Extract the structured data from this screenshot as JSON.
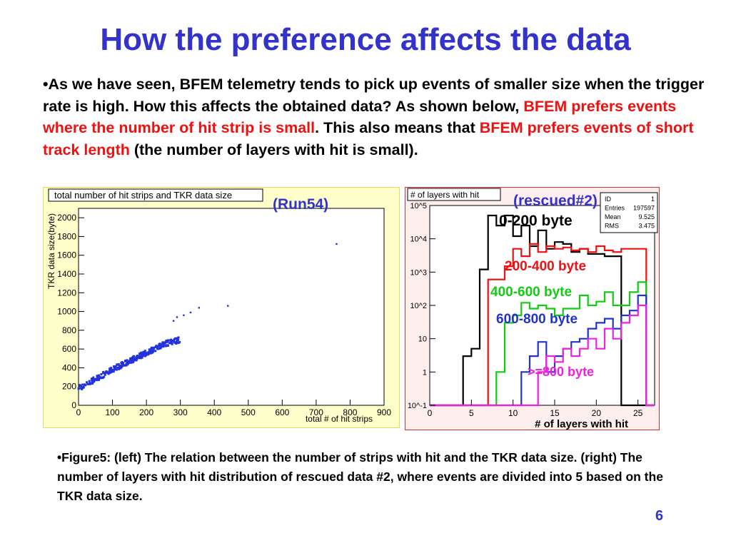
{
  "slide": {
    "title": "How the preference affects the data",
    "paragraph": {
      "t1": "•As we have seen, BFEM telemetry tends to pick up events of smaller size when the trigger rate is high. How this affects the obtained data? As shown below, ",
      "h1": "BFEM prefers events where the number of hit strip is small",
      "t2": ". This also means that ",
      "h2": "BFEM prefers events of short track length",
      "t3": " (the number of layers with hit is small)."
    },
    "caption": "•Figure5: (left) The relation between the number of strips with hit and the TKR data size. (right) The number of layers with hit distribution of rescued data #2, where events are divided into 5 based on the TKR data size.",
    "page_number": "6",
    "colors": {
      "title": "#3333cc",
      "highlight": "#ee1111",
      "scatter": "#2233dd"
    }
  },
  "chart_data": [
    {
      "type": "scatter",
      "title": "total number of hit strips and TKR data size",
      "annotation": "(Run54)",
      "xlabel": "total # of hit strips",
      "ylabel": "TKR data size(byte)",
      "xlim": [
        0,
        900
      ],
      "ylim": [
        0,
        2100
      ],
      "x_ticks": [
        "0",
        "100",
        "200",
        "300",
        "400",
        "500",
        "600",
        "700",
        "800",
        "900"
      ],
      "y_ticks": [
        "0",
        "200",
        "400",
        "600",
        "800",
        "1000",
        "1200",
        "1400",
        "1600",
        "1800",
        "2000"
      ],
      "trend": [
        [
          0,
          180
        ],
        [
          50,
          280
        ],
        [
          100,
          380
        ],
        [
          150,
          470
        ],
        [
          200,
          560
        ],
        [
          250,
          650
        ],
        [
          300,
          700
        ]
      ],
      "outliers": [
        [
          280,
          900
        ],
        [
          290,
          940
        ],
        [
          310,
          960
        ],
        [
          330,
          990
        ],
        [
          355,
          1040
        ],
        [
          440,
          1060
        ],
        [
          760,
          1720
        ]
      ]
    },
    {
      "type": "line",
      "title": "# of layers with hit",
      "annotation": "(rescued#2)",
      "xlabel": "# of layers with hit",
      "ylabel": "",
      "log_y": true,
      "xlim": [
        0,
        27
      ],
      "ylim": [
        0.1,
        100000
      ],
      "x_ticks": [
        "0",
        "5",
        "10",
        "15",
        "20",
        "25"
      ],
      "y_ticks": [
        "10^-1",
        "1",
        "10",
        "10^2",
        "10^3",
        "10^4",
        "10^5"
      ],
      "stats": [
        {
          "label": "ID",
          "value": "1"
        },
        {
          "label": "Entries",
          "value": "197597"
        },
        {
          "label": "Mean",
          "value": "9.525"
        },
        {
          "label": "RMS",
          "value": "3.475"
        }
      ],
      "series": [
        {
          "name": "0-200 byte",
          "color": "#000000",
          "values": [
            0,
            0,
            0,
            0,
            3,
            5,
            1200,
            50000,
            25000,
            50000,
            12000,
            25000,
            6000,
            18000,
            5000,
            8000,
            7000,
            4000,
            5000,
            3500,
            3500,
            3000,
            3000,
            0.1,
            0.1,
            0.1,
            0.1
          ]
        },
        {
          "name": "200-400 byte",
          "color": "#ee1111",
          "values": [
            0,
            0,
            0,
            0,
            0,
            0,
            0.1,
            600,
            600,
            1500,
            5000,
            3000,
            7000,
            4000,
            6000,
            5000,
            5500,
            4500,
            5000,
            4000,
            6000,
            4500,
            4000,
            5000,
            5000,
            5000,
            0
          ]
        },
        {
          "name": "400-600 byte",
          "color": "#11cc11",
          "values": [
            0,
            0,
            0,
            0,
            0,
            0,
            0,
            0.1,
            1,
            30,
            50,
            120,
            80,
            100,
            80,
            50,
            80,
            80,
            200,
            100,
            130,
            250,
            100,
            100,
            250,
            500,
            0
          ]
        },
        {
          "name": "600-800 byte",
          "color": "#2233cc",
          "values": [
            0,
            0,
            0,
            0,
            0,
            0,
            0,
            0,
            0,
            0,
            0.1,
            1,
            3,
            8,
            1,
            3,
            5,
            8,
            10,
            20,
            30,
            40,
            20,
            50,
            70,
            200,
            0
          ]
        },
        {
          "name": ">=800 byte",
          "color": "#ee22dd",
          "values": [
            0,
            0,
            0,
            0,
            0,
            0,
            0,
            0,
            0,
            0,
            0,
            0,
            0.1,
            1,
            3,
            2,
            5,
            3,
            5,
            10,
            5,
            20,
            10,
            30,
            50,
            100,
            0
          ]
        }
      ]
    }
  ]
}
